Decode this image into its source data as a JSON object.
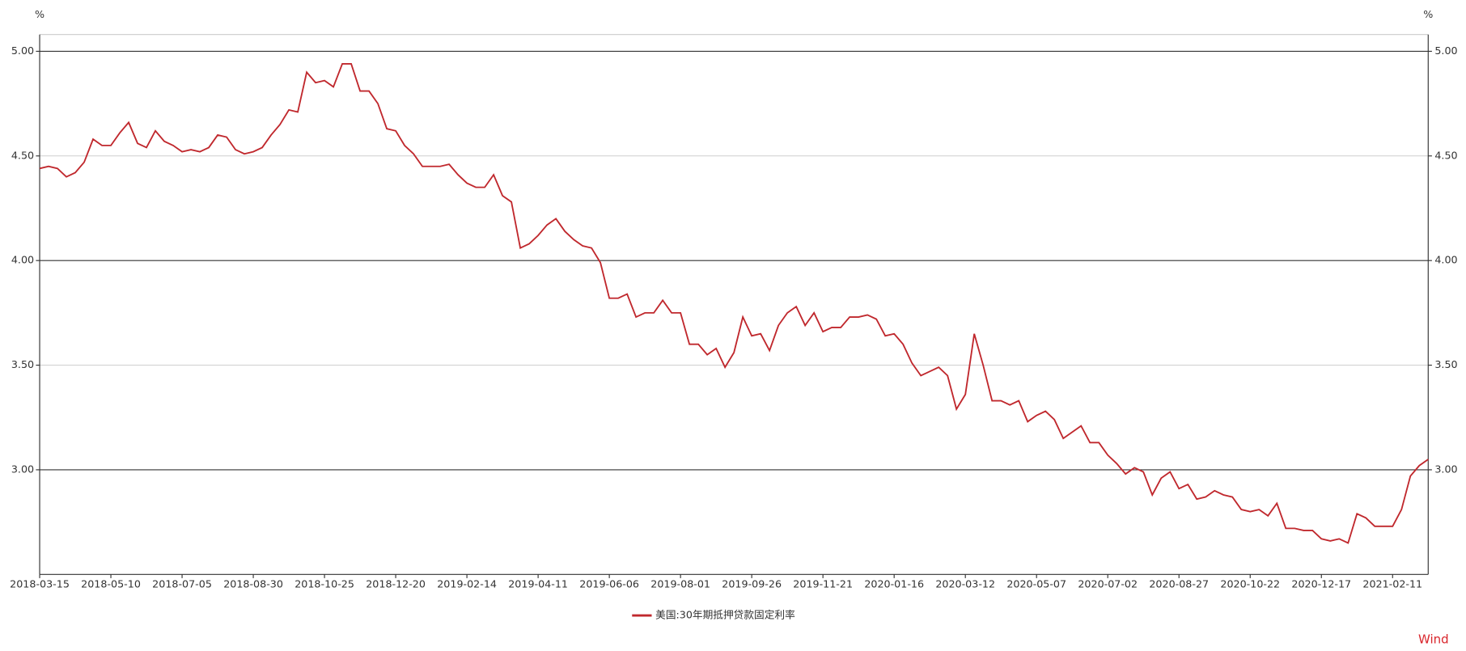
{
  "chart_data": {
    "type": "line",
    "unit_label": "%",
    "watermark": "Wind",
    "grid": true,
    "ylim": [
      2.5,
      5.08
    ],
    "yticks": [
      {
        "value": 3,
        "label": "3.00"
      },
      {
        "value": 3.5,
        "label": "3.50"
      },
      {
        "value": 4,
        "label": "4.00"
      },
      {
        "value": 4.5,
        "label": "4.50"
      },
      {
        "value": 5,
        "label": "5.00"
      }
    ],
    "categories": [
      "2018-03-15",
      null,
      null,
      null,
      null,
      null,
      null,
      null,
      "2018-05-10",
      null,
      null,
      null,
      null,
      null,
      null,
      null,
      "2018-07-05",
      null,
      null,
      null,
      null,
      null,
      null,
      null,
      "2018-08-30",
      null,
      null,
      null,
      null,
      null,
      null,
      null,
      "2018-10-25",
      null,
      null,
      null,
      null,
      null,
      null,
      null,
      "2018-12-20",
      null,
      null,
      null,
      null,
      null,
      null,
      null,
      "2019-02-14",
      null,
      null,
      null,
      null,
      null,
      null,
      null,
      "2019-04-11",
      null,
      null,
      null,
      null,
      null,
      null,
      null,
      "2019-06-06",
      null,
      null,
      null,
      null,
      null,
      null,
      null,
      "2019-08-01",
      null,
      null,
      null,
      null,
      null,
      null,
      null,
      "2019-09-26",
      null,
      null,
      null,
      null,
      null,
      null,
      null,
      "2019-11-21",
      null,
      null,
      null,
      null,
      null,
      null,
      null,
      "2020-01-16",
      null,
      null,
      null,
      null,
      null,
      null,
      null,
      "2020-03-12",
      null,
      null,
      null,
      null,
      null,
      null,
      null,
      "2020-05-07",
      null,
      null,
      null,
      null,
      null,
      null,
      null,
      "2020-07-02",
      null,
      null,
      null,
      null,
      null,
      null,
      null,
      "2020-08-27",
      null,
      null,
      null,
      null,
      null,
      null,
      null,
      "2020-10-22",
      null,
      null,
      null,
      null,
      null,
      null,
      null,
      "2020-12-17",
      null,
      null,
      null,
      null,
      null,
      null,
      null,
      "2021-02-11",
      null,
      null,
      null,
      null
    ],
    "series": [
      {
        "name": "美国:30年期抵押贷款固定利率",
        "color": "#c0282d",
        "values": [
          4.44,
          4.45,
          4.44,
          4.4,
          4.42,
          4.47,
          4.58,
          4.55,
          4.55,
          4.61,
          4.66,
          4.56,
          4.54,
          4.62,
          4.57,
          4.55,
          4.52,
          4.53,
          4.52,
          4.54,
          4.6,
          4.59,
          4.53,
          4.51,
          4.52,
          4.54,
          4.6,
          4.65,
          4.72,
          4.71,
          4.9,
          4.85,
          4.86,
          4.83,
          4.94,
          4.94,
          4.81,
          4.81,
          4.75,
          4.63,
          4.62,
          4.55,
          4.51,
          4.45,
          4.45,
          4.45,
          4.46,
          4.41,
          4.37,
          4.35,
          4.35,
          4.41,
          4.31,
          4.28,
          4.06,
          4.08,
          4.12,
          4.17,
          4.2,
          4.14,
          4.1,
          4.07,
          4.06,
          3.99,
          3.82,
          3.82,
          3.84,
          3.73,
          3.75,
          3.75,
          3.81,
          3.75,
          3.75,
          3.6,
          3.6,
          3.55,
          3.58,
          3.49,
          3.56,
          3.73,
          3.64,
          3.65,
          3.57,
          3.69,
          3.75,
          3.78,
          3.69,
          3.75,
          3.66,
          3.68,
          3.68,
          3.73,
          3.73,
          3.74,
          3.72,
          3.64,
          3.65,
          3.6,
          3.51,
          3.45,
          3.47,
          3.49,
          3.45,
          3.29,
          3.36,
          3.65,
          3.5,
          3.33,
          3.33,
          3.31,
          3.33,
          3.23,
          3.26,
          3.28,
          3.24,
          3.15,
          3.18,
          3.21,
          3.13,
          3.13,
          3.07,
          3.03,
          2.98,
          3.01,
          2.99,
          2.88,
          2.96,
          2.99,
          2.91,
          2.93,
          2.86,
          2.87,
          2.9,
          2.88,
          2.87,
          2.81,
          2.8,
          2.81,
          2.78,
          2.84,
          2.72,
          2.72,
          2.71,
          2.71,
          2.67,
          2.66,
          2.67,
          2.65,
          2.79,
          2.77,
          2.73,
          2.73,
          2.73,
          2.81,
          2.97,
          3.02,
          3.05
        ]
      }
    ]
  }
}
